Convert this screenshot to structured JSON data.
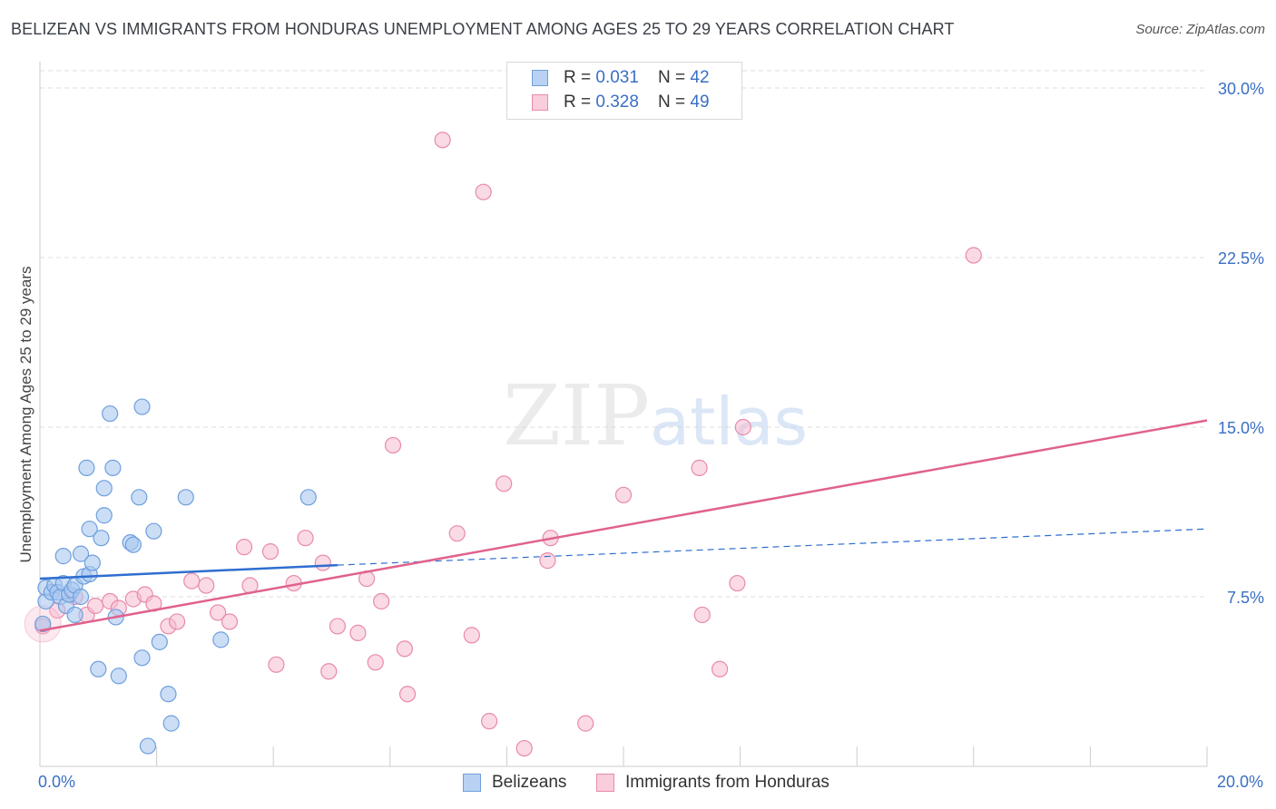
{
  "title": "BELIZEAN VS IMMIGRANTS FROM HONDURAS UNEMPLOYMENT AMONG AGES 25 TO 29 YEARS CORRELATION CHART",
  "source": "Source: ZipAtlas.com",
  "watermark": {
    "zip": "ZIP",
    "atlas": "atlas"
  },
  "legend_top": {
    "series1": {
      "r_label": "R = ",
      "r_value": "0.031",
      "n_label": "N = ",
      "n_value": "42"
    },
    "series2": {
      "r_label": "R = ",
      "r_value": "0.328",
      "n_label": "N = ",
      "n_value": "49"
    }
  },
  "legend_bottom": {
    "series1": "Belizeans",
    "series2": "Immigrants from Honduras"
  },
  "x_axis": {
    "min_label": "0.0%",
    "max_label": "20.0%"
  },
  "y_axis": {
    "title": "Unemployment Among Ages 25 to 29 years",
    "tick_labels": [
      "7.5%",
      "15.0%",
      "22.5%",
      "30.0%"
    ]
  },
  "colors": {
    "blue_fill": "#a9c8f0",
    "blue_stroke": "#6f9fdc",
    "blue_line": "#2e6ed0",
    "pink_fill": "#f6bcd0",
    "pink_stroke": "#e88aab",
    "pink_line": "#e0628c",
    "axis_text": "#3a6fc4",
    "grid": "#dddddd"
  },
  "chart_data": {
    "type": "scatter",
    "title": "BELIZEAN VS IMMIGRANTS FROM HONDURAS UNEMPLOYMENT AMONG AGES 25 TO 29 YEARS CORRELATION CHART",
    "xlabel": "",
    "ylabel": "Unemployment Among Ages 25 to 29 years",
    "xlim": [
      0,
      20
    ],
    "ylim": [
      0,
      31
    ],
    "y_ticks": [
      7.5,
      15.0,
      22.5,
      30.0
    ],
    "series": [
      {
        "name": "Belizeans",
        "r": 0.031,
        "n": 42,
        "trend": {
          "x0": 0,
          "y0": 8.3,
          "x1": 5.1,
          "y1": 8.9,
          "dash_x1": 20,
          "dash_y1": 10.5
        },
        "points": [
          [
            0.05,
            6.3
          ],
          [
            0.1,
            7.3
          ],
          [
            0.1,
            7.9
          ],
          [
            0.2,
            7.7
          ],
          [
            0.25,
            8.0
          ],
          [
            0.3,
            7.7
          ],
          [
            0.35,
            7.5
          ],
          [
            0.4,
            8.1
          ],
          [
            0.4,
            9.3
          ],
          [
            0.45,
            7.1
          ],
          [
            0.5,
            7.6
          ],
          [
            0.55,
            7.8
          ],
          [
            0.6,
            6.7
          ],
          [
            0.6,
            8.0
          ],
          [
            0.7,
            9.4
          ],
          [
            0.7,
            7.5
          ],
          [
            0.75,
            8.4
          ],
          [
            0.8,
            13.2
          ],
          [
            0.85,
            8.5
          ],
          [
            0.85,
            10.5
          ],
          [
            0.9,
            9.0
          ],
          [
            1.0,
            4.3
          ],
          [
            1.05,
            10.1
          ],
          [
            1.1,
            11.1
          ],
          [
            1.1,
            12.3
          ],
          [
            1.2,
            15.6
          ],
          [
            1.25,
            13.2
          ],
          [
            1.3,
            6.6
          ],
          [
            1.35,
            4.0
          ],
          [
            1.55,
            9.9
          ],
          [
            1.6,
            9.8
          ],
          [
            1.7,
            11.9
          ],
          [
            1.75,
            4.8
          ],
          [
            1.75,
            15.9
          ],
          [
            1.85,
            0.9
          ],
          [
            1.95,
            10.4
          ],
          [
            2.05,
            5.5
          ],
          [
            2.2,
            3.2
          ],
          [
            2.25,
            1.9
          ],
          [
            2.5,
            11.9
          ],
          [
            3.1,
            5.6
          ],
          [
            4.6,
            11.9
          ]
        ]
      },
      {
        "name": "Immigrants from Honduras",
        "r": 0.328,
        "n": 49,
        "trend": {
          "x0": 0,
          "y0": 6.0,
          "x1": 20,
          "y1": 15.3
        },
        "points": [
          [
            0.05,
            6.2
          ],
          [
            0.3,
            6.9
          ],
          [
            0.6,
            7.5
          ],
          [
            0.8,
            6.7
          ],
          [
            0.95,
            7.1
          ],
          [
            1.2,
            7.3
          ],
          [
            1.35,
            7.0
          ],
          [
            1.6,
            7.4
          ],
          [
            1.8,
            7.6
          ],
          [
            1.95,
            7.2
          ],
          [
            2.2,
            6.2
          ],
          [
            2.35,
            6.4
          ],
          [
            2.6,
            8.2
          ],
          [
            2.85,
            8.0
          ],
          [
            3.05,
            6.8
          ],
          [
            3.25,
            6.4
          ],
          [
            3.5,
            9.7
          ],
          [
            3.6,
            8.0
          ],
          [
            3.95,
            9.5
          ],
          [
            4.05,
            4.5
          ],
          [
            4.35,
            8.1
          ],
          [
            4.55,
            10.1
          ],
          [
            4.85,
            9.0
          ],
          [
            4.95,
            4.2
          ],
          [
            5.1,
            6.2
          ],
          [
            5.45,
            5.9
          ],
          [
            5.6,
            8.3
          ],
          [
            5.75,
            4.6
          ],
          [
            5.85,
            7.3
          ],
          [
            6.05,
            14.2
          ],
          [
            6.25,
            5.2
          ],
          [
            6.3,
            3.2
          ],
          [
            6.9,
            27.7
          ],
          [
            7.15,
            10.3
          ],
          [
            7.4,
            5.8
          ],
          [
            7.6,
            25.4
          ],
          [
            7.7,
            2.0
          ],
          [
            7.95,
            12.5
          ],
          [
            8.3,
            0.8
          ],
          [
            8.75,
            10.1
          ],
          [
            8.7,
            9.1
          ],
          [
            9.35,
            1.9
          ],
          [
            10.0,
            12.0
          ],
          [
            11.3,
            13.2
          ],
          [
            11.35,
            6.7
          ],
          [
            11.65,
            4.3
          ],
          [
            11.95,
            8.1
          ],
          [
            12.05,
            15.0
          ],
          [
            16.0,
            22.6
          ]
        ]
      }
    ]
  }
}
